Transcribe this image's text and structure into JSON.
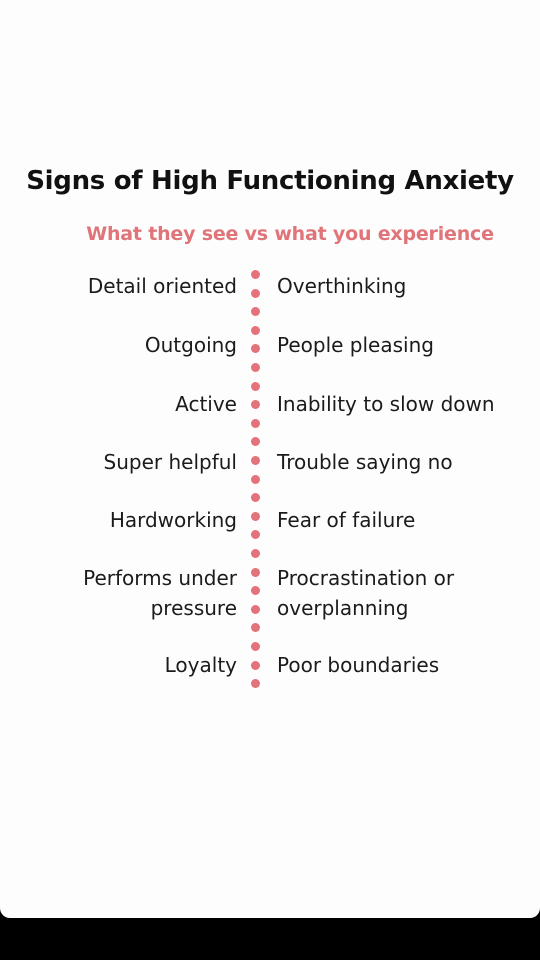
{
  "title": "Signs of High Functioning Anxiety",
  "subtitle": "What they see vs what you experience",
  "accent_color": "#e07479",
  "rows": [
    {
      "left": "Detail oriented",
      "right": "Overthinking"
    },
    {
      "left": "Outgoing",
      "right": "People pleasing"
    },
    {
      "left": "Active",
      "right": "Inability to slow down"
    },
    {
      "left": "Super helpful",
      "right": "Trouble saying no"
    },
    {
      "left": "Hardworking",
      "right": "Fear of failure"
    },
    {
      "left": "Performs under\npressure",
      "right": "Procrastination or\noverplanning"
    },
    {
      "left": "Loyalty",
      "right": "Poor boundaries"
    }
  ]
}
